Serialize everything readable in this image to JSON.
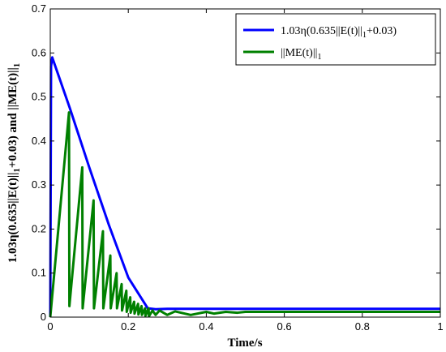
{
  "chart_data": {
    "type": "line",
    "xlabel": "Time/s",
    "ylabel": "1.03η(0.635||E(t)||_1+0.03) and ||ME(t)||_1",
    "ylabel_parts": {
      "main1": "1.03η(0.635||E(t)||",
      "sub1": "1",
      "main2": "+0.03) and ||ME(t)||",
      "sub2": "1"
    },
    "xlim": [
      0,
      1
    ],
    "ylim": [
      0,
      0.7
    ],
    "xticks": [
      0,
      0.2,
      0.4,
      0.6,
      0.8,
      1
    ],
    "xtick_labels": [
      "0",
      "0.2",
      "0.4",
      "0.6",
      "0.8",
      "1"
    ],
    "yticks": [
      0,
      0.1,
      0.2,
      0.3,
      0.4,
      0.5,
      0.6,
      0.7
    ],
    "ytick_labels": [
      "0",
      "0.1",
      "0.2",
      "0.3",
      "0.4",
      "0.5",
      "0.6",
      "0.7"
    ],
    "grid": false,
    "legend_position": "top-right",
    "series": [
      {
        "name": "1.03η(0.635||E(t)||_1+0.03)",
        "legend_parts": {
          "main": "1.03η(0.635||E(t)||",
          "sub": "1",
          "tail": "+0.03)"
        },
        "color": "#0000ff",
        "x": [
          0,
          0.002,
          0.005,
          0.05,
          0.1,
          0.15,
          0.2,
          0.25,
          0.27,
          0.3,
          0.35,
          0.4,
          0.5,
          0.6,
          0.8,
          1.0
        ],
        "y": [
          0,
          0.57,
          0.59,
          0.475,
          0.34,
          0.21,
          0.09,
          0.02,
          0.018,
          0.019,
          0.019,
          0.019,
          0.019,
          0.019,
          0.019,
          0.019
        ]
      },
      {
        "name": "||ME(t)||_1",
        "legend_parts": {
          "main": "||ME(t)||",
          "sub": "1",
          "tail": ""
        },
        "color": "#008000",
        "x": [
          0,
          0.048,
          0.049,
          0.082,
          0.083,
          0.111,
          0.112,
          0.135,
          0.136,
          0.154,
          0.155,
          0.17,
          0.171,
          0.183,
          0.184,
          0.195,
          0.196,
          0.205,
          0.206,
          0.215,
          0.216,
          0.225,
          0.226,
          0.234,
          0.235,
          0.243,
          0.244,
          0.252,
          0.253,
          0.262,
          0.27,
          0.28,
          0.3,
          0.32,
          0.36,
          0.4,
          0.42,
          0.45,
          0.48,
          0.5,
          1.0
        ],
        "y": [
          0,
          0.465,
          0.025,
          0.34,
          0.02,
          0.265,
          0.02,
          0.195,
          0.02,
          0.14,
          0.02,
          0.1,
          0.02,
          0.075,
          0.015,
          0.06,
          0.012,
          0.045,
          0.01,
          0.035,
          0.008,
          0.03,
          0.006,
          0.025,
          0.005,
          0.02,
          0.003,
          0.02,
          0.002,
          0.015,
          0.005,
          0.015,
          0.005,
          0.013,
          0.005,
          0.012,
          0.008,
          0.012,
          0.01,
          0.012,
          0.012
        ]
      }
    ]
  }
}
